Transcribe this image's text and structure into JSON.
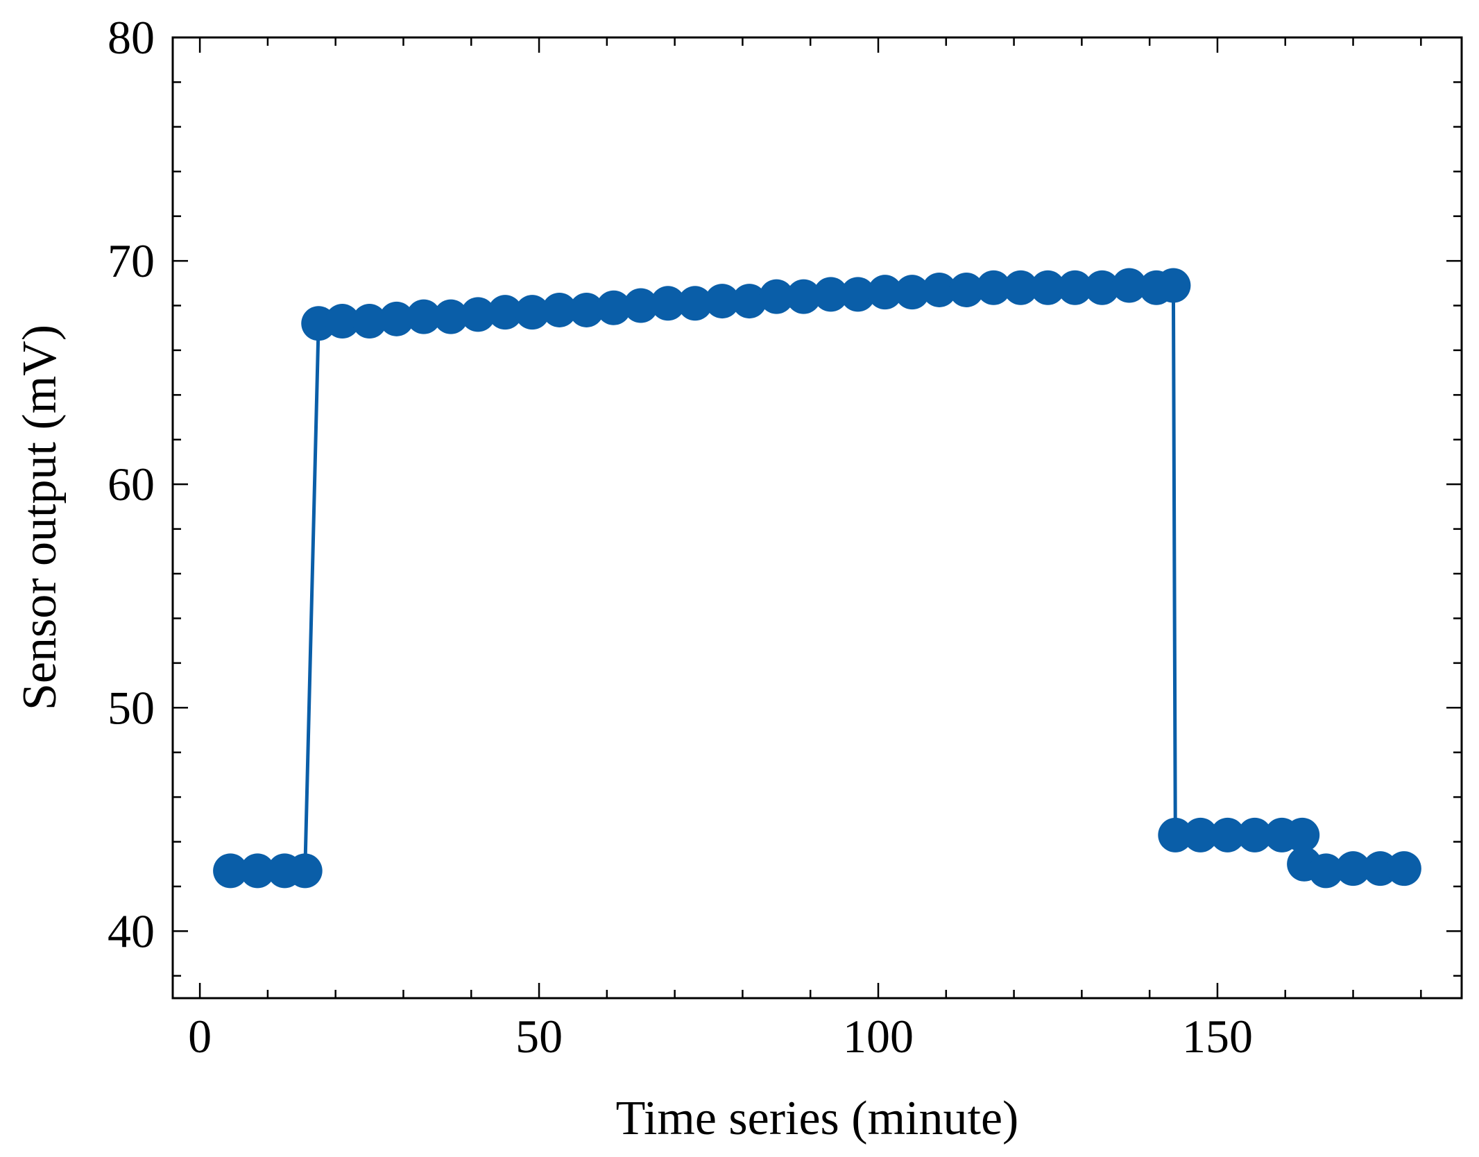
{
  "chart_data": {
    "type": "line",
    "xlabel": "Time series (minute)",
    "ylabel": "Sensor output (mV)",
    "xlim": [
      -4,
      186
    ],
    "ylim": [
      37,
      80
    ],
    "xticks": [
      0,
      50,
      100,
      150
    ],
    "yticks": [
      40,
      50,
      60,
      70,
      80
    ],
    "x_minor_step": 10,
    "y_minor_step": 2,
    "grid": false,
    "legend": "none",
    "color": "#0a5ea8",
    "series": [
      {
        "marker": "circle",
        "x": [
          4.5,
          8.5,
          12.5,
          15.5,
          17.5,
          21,
          25,
          29,
          33,
          37,
          41,
          45,
          49,
          53,
          57,
          61,
          65,
          69,
          73,
          77,
          81,
          85,
          89,
          93,
          97,
          101,
          105,
          109,
          113,
          117,
          121,
          125,
          129,
          133,
          137,
          141,
          143.5,
          143.8,
          147.5,
          151.5,
          155.5,
          159.5,
          162.5,
          162.8,
          166,
          170,
          174,
          177.5
        ],
        "y": [
          42.7,
          42.7,
          42.7,
          42.7,
          67.2,
          67.3,
          67.3,
          67.4,
          67.5,
          67.5,
          67.6,
          67.7,
          67.7,
          67.8,
          67.8,
          67.9,
          68.0,
          68.1,
          68.1,
          68.2,
          68.2,
          68.4,
          68.4,
          68.5,
          68.5,
          68.6,
          68.6,
          68.7,
          68.7,
          68.8,
          68.8,
          68.8,
          68.8,
          68.8,
          68.9,
          68.8,
          68.9,
          44.3,
          44.3,
          44.3,
          44.3,
          44.3,
          44.3,
          43.0,
          42.7,
          42.8,
          42.8,
          42.8
        ]
      }
    ]
  }
}
